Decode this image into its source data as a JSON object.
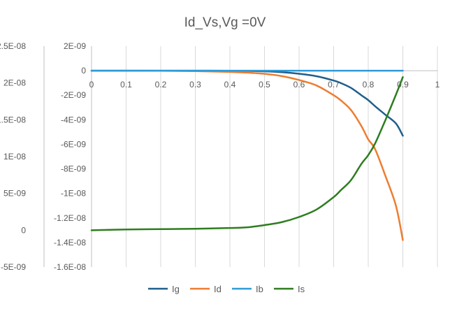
{
  "chart_data": {
    "type": "line",
    "title": "Id_Vs,Vg =0V",
    "x": [
      0,
      0.1,
      0.2,
      0.3,
      0.4,
      0.45,
      0.5,
      0.55,
      0.6,
      0.65,
      0.7,
      0.72,
      0.75,
      0.78,
      0.8,
      0.82,
      0.85,
      0.88,
      0.9
    ],
    "xlim": [
      0,
      1
    ],
    "x_ticks": [
      "0",
      "0.1",
      "0.2",
      "0.3",
      "0.4",
      "0.5",
      "0.6",
      "0.7",
      "0.8",
      "0.9",
      "1"
    ],
    "primary_ylim": [
      -1.6e-08,
      2e-09
    ],
    "primary_y_ticks": [
      "2E-09",
      "0",
      "-2E-09",
      "-4E-09",
      "-6E-09",
      "-8E-09",
      "-1E-08",
      "-1.2E-08",
      "-1.4E-08",
      "-1.6E-08"
    ],
    "secondary_ylim": [
      -5e-09,
      2.5e-08
    ],
    "secondary_y_ticks": [
      "2.5E-08",
      "2E-08",
      "1.5E-08",
      "1E-08",
      "5E-09",
      "0",
      "-5E-09"
    ],
    "grid": "vertical",
    "legend": "bottom",
    "series": [
      {
        "name": "Ig",
        "axis": "primary",
        "color": "#1f5f8b",
        "values": [
          0,
          0,
          0,
          0,
          -1e-11,
          -2e-11,
          -5e-11,
          -1.2e-10,
          -2.5e-10,
          -4.5e-10,
          -8e-10,
          -1e-09,
          -1.4e-09,
          -2e-09,
          -2.4e-09,
          -2.9e-09,
          -3.6e-09,
          -4.3e-09,
          -5.3e-09
        ]
      },
      {
        "name": "Id",
        "axis": "primary",
        "color": "#ed7d31",
        "values": [
          0,
          0,
          -1e-11,
          -4e-11,
          -1e-10,
          -1.6e-10,
          -2.6e-10,
          -4.4e-10,
          -7.6e-10,
          -1.2e-09,
          -2e-09,
          -2.4e-09,
          -3.2e-09,
          -4.5e-09,
          -5.6e-09,
          -6.4e-09,
          -8.6e-09,
          -1.1e-08,
          -1.38e-08
        ]
      },
      {
        "name": "Ib",
        "axis": "primary",
        "color": "#2e9bd6",
        "values": [
          0,
          0,
          0,
          0,
          0,
          0,
          0,
          0,
          0,
          0,
          0,
          0,
          0,
          0,
          0,
          0,
          0,
          0,
          0
        ]
      },
      {
        "name": "Is",
        "axis": "secondary",
        "color": "#2e7d1f",
        "values": [
          0,
          1e-10,
          1.5e-10,
          2e-10,
          3e-10,
          4e-10,
          7e-10,
          1.1e-09,
          1.8e-09,
          2.8e-09,
          4.5e-09,
          5.4e-09,
          6.8e-09,
          9e-09,
          1.02e-08,
          1.18e-08,
          1.5e-08,
          1.84e-08,
          2.08e-08
        ]
      }
    ]
  }
}
